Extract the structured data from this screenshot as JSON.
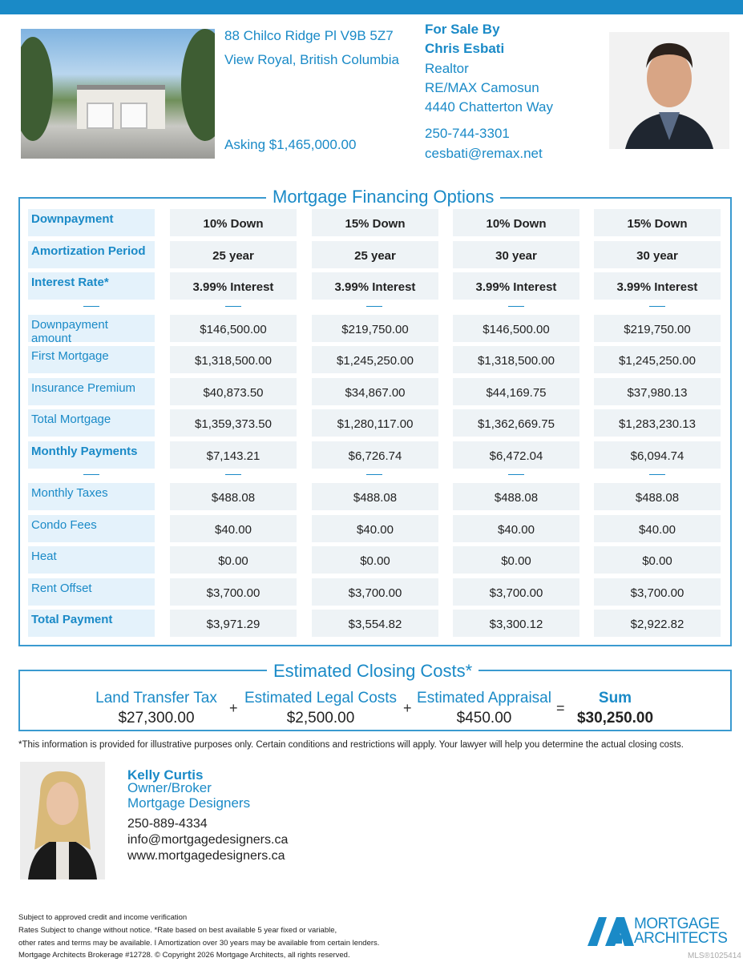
{
  "listing": {
    "address_line1": "88 Chilco Ridge Pl V9B 5Z7",
    "address_line2": "View Royal, British Columbia",
    "asking": "Asking $1,465,000.00"
  },
  "agent": {
    "heading": "For Sale By",
    "name": "Chris Esbati",
    "title": "Realtor",
    "company": "RE/MAX Camosun",
    "street": "4440 Chatterton Way",
    "phone": "250-744-3301",
    "email": "cesbati@remax.net"
  },
  "financing": {
    "title": "Mortgage Financing Options",
    "rows": [
      {
        "label": "Downpayment",
        "bold": true,
        "values": [
          "10% Down",
          "15% Down",
          "10% Down",
          "15% Down"
        ]
      },
      {
        "label": "Amortization Period",
        "bold": true,
        "values": [
          "25 year",
          "25 year",
          "30 year",
          "30 year"
        ]
      },
      {
        "label": "Interest Rate*",
        "bold": true,
        "values": [
          "3.99% Interest",
          "3.99% Interest",
          "3.99% Interest",
          "3.99% Interest"
        ]
      },
      {
        "divider": true
      },
      {
        "label": "Downpayment amount",
        "values": [
          "$146,500.00",
          "$219,750.00",
          "$146,500.00",
          "$219,750.00"
        ]
      },
      {
        "label": "First Mortgage",
        "values": [
          "$1,318,500.00",
          "$1,245,250.00",
          "$1,318,500.00",
          "$1,245,250.00"
        ]
      },
      {
        "label": "Insurance Premium",
        "values": [
          "$40,873.50",
          "$34,867.00",
          "$44,169.75",
          "$37,980.13"
        ]
      },
      {
        "label": "Total Mortgage",
        "values": [
          "$1,359,373.50",
          "$1,280,117.00",
          "$1,362,669.75",
          "$1,283,230.13"
        ]
      },
      {
        "label": "Monthly Payments",
        "bold": true,
        "values": [
          "$7,143.21",
          "$6,726.74",
          "$6,472.04",
          "$6,094.74"
        ]
      },
      {
        "divider": true
      },
      {
        "label": "Monthly Taxes",
        "values": [
          "$488.08",
          "$488.08",
          "$488.08",
          "$488.08"
        ]
      },
      {
        "label": "Condo Fees",
        "values": [
          "$40.00",
          "$40.00",
          "$40.00",
          "$40.00"
        ]
      },
      {
        "label": "Heat",
        "values": [
          "$0.00",
          "$0.00",
          "$0.00",
          "$0.00"
        ]
      },
      {
        "label": "Rent Offset",
        "values": [
          "$3,700.00",
          "$3,700.00",
          "$3,700.00",
          "$3,700.00"
        ]
      },
      {
        "label": "Total Payment",
        "bold": true,
        "values": [
          "$3,971.29",
          "$3,554.82",
          "$3,300.12",
          "$2,922.82"
        ]
      }
    ]
  },
  "closing": {
    "title": "Estimated Closing Costs*",
    "land_label": "Land Transfer Tax",
    "land_value": "$27,300.00",
    "legal_label": "Estimated Legal Costs",
    "legal_value": "$2,500.00",
    "appraisal_label": "Estimated Appraisal",
    "appraisal_value": "$450.00",
    "sum_label": "Sum",
    "sum_value": "$30,250.00",
    "plus": "+",
    "equals": "="
  },
  "disclaimer": "*This information is provided for illustrative purposes only. Certain conditions and restrictions will apply. Your lawyer will help you determine the actual closing costs.",
  "broker": {
    "name": "Kelly Curtis",
    "title": "Owner/Broker",
    "company": "Mortgage Designers",
    "phone": "250-889-4334",
    "email": "info@mortgagedesigners.ca",
    "website": "www.mortgagedesigners.ca"
  },
  "footer": {
    "line1": "Subject to approved credit and income verification",
    "line2": "Rates Subject to change without notice. *Rate based on best available 5 year fixed or variable,",
    "line3": "other rates and terms may be available.  I Amortization over 30 years may be available from certain lenders.",
    "line4": "Mortgage Architects Brokerage #12728. © Copyright 2026 Mortgage Architects, all rights reserved.",
    "logo_line1": "MORTGAGE",
    "logo_line2": "ARCHITECTS",
    "mls": "MLS®1025414"
  },
  "colors": {
    "accent": "#1a8ac7",
    "label_bg": "#e4f2fb",
    "value_bg": "#eef3f6"
  }
}
